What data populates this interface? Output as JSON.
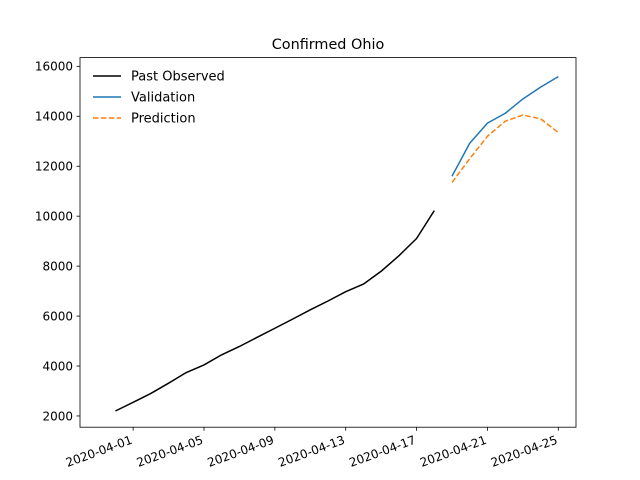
{
  "chart_data": {
    "type": "line",
    "title": "Confirmed Ohio",
    "xlabel": "",
    "ylabel": "",
    "x_type": "date",
    "xlim": [
      "2020-03-29",
      "2020-04-26"
    ],
    "ylim": [
      1550,
      16350
    ],
    "x_ticks": [
      "2020-04-01",
      "2020-04-05",
      "2020-04-09",
      "2020-04-13",
      "2020-04-17",
      "2020-04-21",
      "2020-04-25"
    ],
    "y_ticks": [
      2000,
      4000,
      6000,
      8000,
      10000,
      12000,
      14000,
      16000
    ],
    "y_tick_labels": [
      "2000",
      "4000",
      "6000",
      "8000",
      "10000",
      "12000",
      "14000",
      "16000"
    ],
    "grid": false,
    "legend_position": "top-left",
    "series": [
      {
        "name": "Past Observed",
        "color": "#000000",
        "dash": "solid",
        "x": [
          "2020-03-31",
          "2020-04-01",
          "2020-04-02",
          "2020-04-03",
          "2020-04-04",
          "2020-04-05",
          "2020-04-06",
          "2020-04-07",
          "2020-04-08",
          "2020-04-09",
          "2020-04-10",
          "2020-04-11",
          "2020-04-12",
          "2020-04-13",
          "2020-04-14",
          "2020-04-15",
          "2020-04-16",
          "2020-04-17",
          "2020-04-18"
        ],
        "y": [
          2199,
          2547,
          2902,
          3312,
          3739,
          4043,
          4450,
          4782,
          5148,
          5512,
          5878,
          6250,
          6604,
          6975,
          7280,
          7794,
          8414,
          9107,
          10222
        ]
      },
      {
        "name": "Validation",
        "color": "#1f77b4",
        "dash": "solid",
        "x": [
          "2020-04-19",
          "2020-04-20",
          "2020-04-21",
          "2020-04-22",
          "2020-04-23",
          "2020-04-24",
          "2020-04-25"
        ],
        "y": [
          11602,
          12919,
          13725,
          14117,
          14694,
          15169,
          15587
        ]
      },
      {
        "name": "Prediction",
        "color": "#ff7f0e",
        "dash": "dashed",
        "x": [
          "2020-04-19",
          "2020-04-20",
          "2020-04-21",
          "2020-04-22",
          "2020-04-23",
          "2020-04-24",
          "2020-04-25"
        ],
        "y": [
          11350,
          12300,
          13200,
          13800,
          14050,
          13900,
          13350
        ]
      }
    ]
  }
}
